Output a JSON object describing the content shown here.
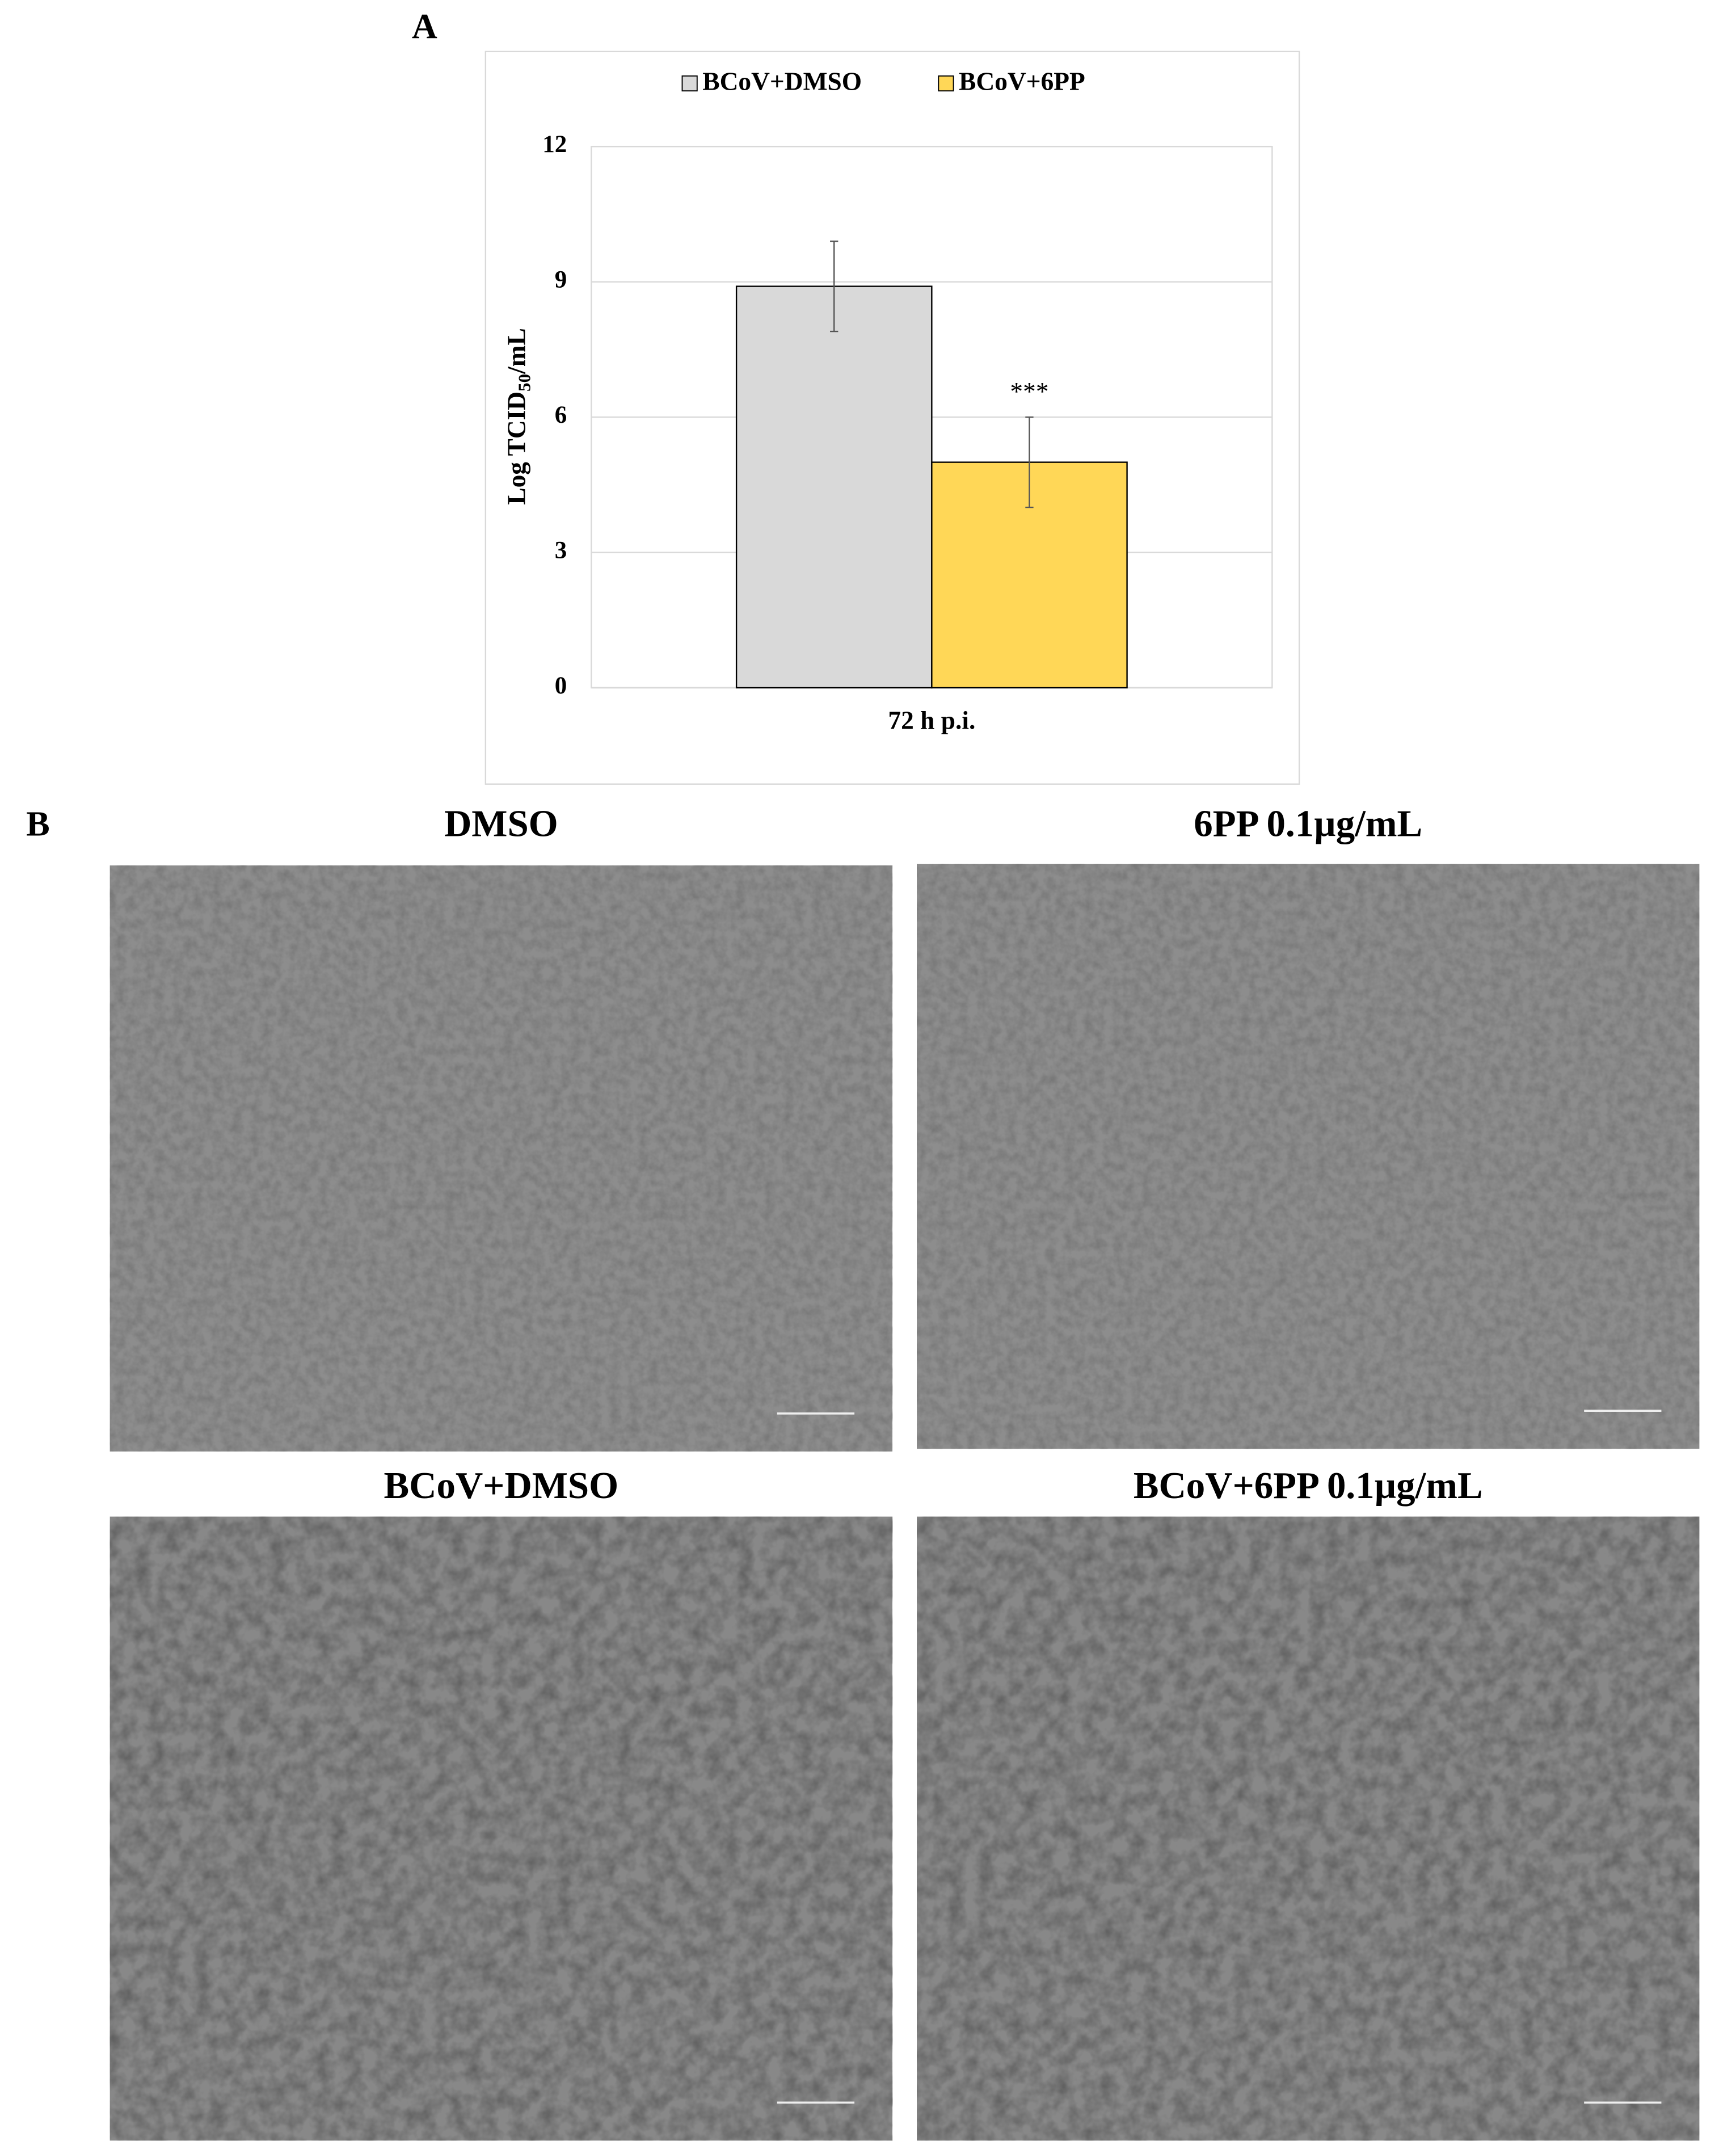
{
  "chart_data": {
    "type": "bar",
    "panel_label": "A",
    "categories": [
      "72 h p.i."
    ],
    "series": [
      {
        "name": "BCoV+DMSO",
        "color": "#d9d9d9",
        "values": [
          8.9
        ],
        "errors": [
          1.0
        ]
      },
      {
        "name": "BCoV+6PP",
        "color": "#ffd757",
        "values": [
          5.0
        ],
        "errors": [
          1.0
        ]
      }
    ],
    "ylabel": [
      "Log TCID",
      "50",
      "/mL"
    ],
    "annotations": [
      "***"
    ],
    "ylim": [
      0,
      12
    ],
    "yticks": [
      0,
      3,
      6,
      9,
      12
    ],
    "grid": true,
    "legend": "top"
  },
  "panel_b": {
    "label": "B",
    "images": [
      {
        "title": "DMSO"
      },
      {
        "title": "6PP 0.1µg/mL"
      },
      {
        "title": "BCoV+DMSO"
      },
      {
        "title": "BCoV+6PP 0.1µg/mL"
      }
    ]
  }
}
